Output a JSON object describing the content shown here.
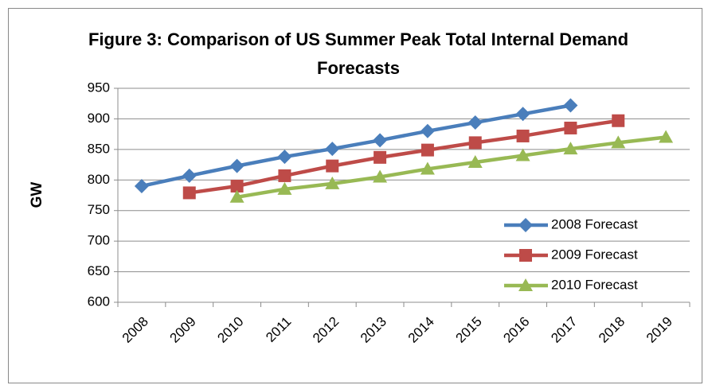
{
  "chart_data": {
    "type": "line",
    "title": "Figure 3: Comparison of US Summer Peak Total Internal Demand Forecasts",
    "y_label": "GW",
    "categories": [
      "2008",
      "2009",
      "2010",
      "2011",
      "2012",
      "2013",
      "2014",
      "2015",
      "2016",
      "2017",
      "2018",
      "2019"
    ],
    "series": [
      {
        "name": "2008 Forecast",
        "color": "#4a7ebb",
        "marker": "diamond",
        "values": [
          790,
          807,
          823,
          838,
          851,
          865,
          880,
          894,
          908,
          922,
          null,
          null
        ]
      },
      {
        "name": "2009 Forecast",
        "color": "#be4b48",
        "marker": "square",
        "values": [
          null,
          779,
          790,
          807,
          823,
          837,
          849,
          861,
          872,
          885,
          897,
          null
        ]
      },
      {
        "name": "2010 Forecast",
        "color": "#98b954",
        "marker": "triangle",
        "values": [
          null,
          null,
          772,
          785,
          794,
          805,
          818,
          829,
          840,
          851,
          861,
          870
        ]
      }
    ],
    "ylim": [
      600,
      950
    ],
    "yticks": [
      600,
      650,
      700,
      750,
      800,
      850,
      900,
      950
    ],
    "grid": true,
    "legend": "lower right"
  }
}
